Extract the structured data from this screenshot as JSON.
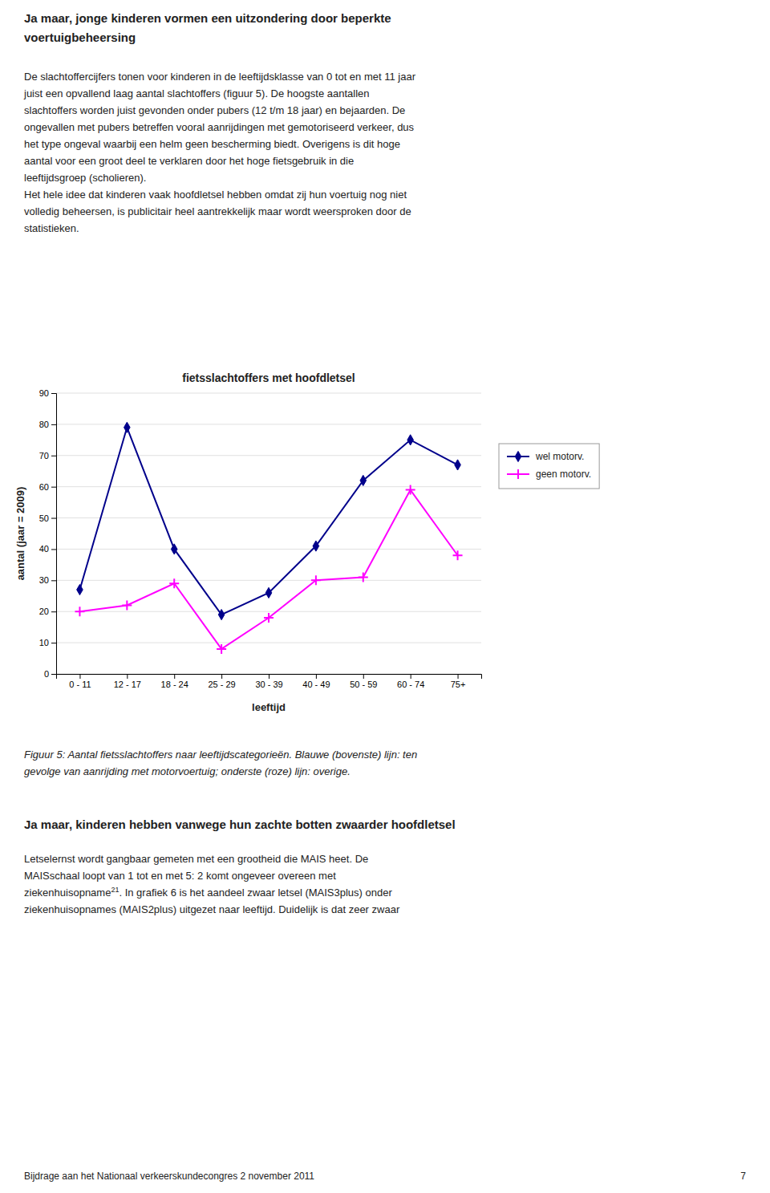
{
  "heading1": [
    "Ja maar, jonge kinderen vormen een uitzondering door beperkte",
    "voertuigbeheersing"
  ],
  "body1": [
    "De slachtoffercijfers tonen voor kinderen in de leeftijdsklasse van 0 tot en met 11 jaar",
    "juist een opvallend laag aantal slachtoffers (figuur 5). De hoogste aantallen",
    "slachtoffers worden juist gevonden onder pubers (12 t/m 18 jaar) en bejaarden. De",
    "ongevallen met pubers betreffen vooral aanrijdingen met gemotoriseerd verkeer, dus",
    "het type ongeval waarbij een helm geen bescherming biedt. Overigens is dit hoge",
    "aantal voor een groot deel te verklaren door het hoge fietsgebruik in die",
    "leeftijdsgroep (scholieren).",
    "Het hele idee dat kinderen vaak hoofdletsel hebben omdat zij hun voertuig nog niet",
    "volledig beheersen, is publicitair heel aantrekkelijk maar wordt weersproken door de",
    "statistieken."
  ],
  "chart_data": {
    "type": "line",
    "title": "fietsslachtoffers met hoofdletsel",
    "xlabel": "leeftijd",
    "ylabel": "aantal (jaar = 2009)",
    "categories": [
      "0 - 11",
      "12 - 17",
      "18 - 24",
      "25 - 29",
      "30 - 39",
      "40 - 49",
      "50 - 59",
      "60 - 74",
      "75+"
    ],
    "series": [
      {
        "name": "wel motorv.",
        "color": "#00008B",
        "marker": "diamond",
        "values": [
          27,
          79,
          40,
          19,
          26,
          41,
          62,
          75,
          67
        ]
      },
      {
        "name": "geen motorv.",
        "color": "#FF00FF",
        "marker": "plus",
        "values": [
          20,
          22,
          29,
          8,
          18,
          30,
          31,
          59,
          38
        ]
      }
    ],
    "ylim": [
      0,
      90
    ],
    "yticks": [
      0,
      10,
      20,
      30,
      40,
      50,
      60,
      70,
      80,
      90
    ],
    "grid": true,
    "legend": "right"
  },
  "caption": [
    "Figuur 5: Aantal fietsslachtoffers naar leeftijdscategorieën. Blauwe (bovenste) lijn: ten",
    "gevolge van aanrijding met motorvoertuig; onderste (roze) lijn: overige."
  ],
  "heading2": "Ja maar, kinderen hebben vanwege hun zachte botten zwaarder hoofdletsel",
  "body2": {
    "lines_before": [
      "Letselernst wordt gangbaar gemeten met een grootheid die MAIS heet. De",
      "MAISschaal loopt van 1 tot en met 5: 2 komt ongeveer overeen met",
      "ziekenhuisopname"
    ],
    "superscript": "21",
    "lines_after": [
      ". In grafiek 6 is het aandeel zwaar letsel (MAIS3plus) onder",
      "ziekenhuisopnames (MAIS2plus) uitgezet naar leeftijd. Duidelijk is dat zeer zwaar"
    ]
  },
  "footer": "Bijdrage aan het Nationaal verkeerskundecongres 2 november 2011",
  "page_number": 7
}
